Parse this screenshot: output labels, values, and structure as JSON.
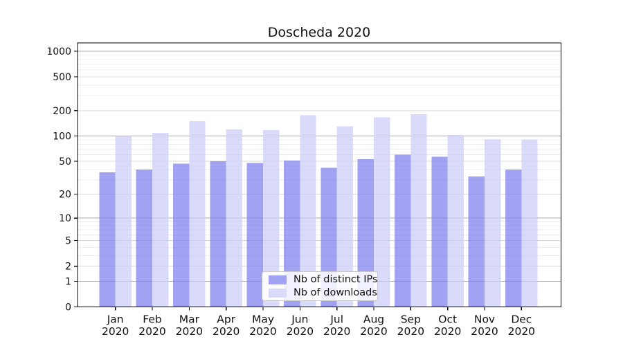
{
  "title": "Doscheda 2020",
  "legend": {
    "items": [
      {
        "label": "Nb of distinct IPs",
        "color": "#a1a3f2"
      },
      {
        "label": "Nb of downloads",
        "color": "#dadbfa"
      }
    ]
  },
  "x_axis": {
    "year": "2020",
    "months": [
      "Jan",
      "Feb",
      "Mar",
      "Apr",
      "May",
      "Jun",
      "Jul",
      "Aug",
      "Sep",
      "Oct",
      "Nov",
      "Dec"
    ]
  },
  "y_axis": {
    "tick_labels": [
      "0",
      "1",
      "2",
      "5",
      "10",
      "20",
      "50",
      "100",
      "200",
      "500",
      "1000"
    ]
  },
  "colors": {
    "bar1_rgba": "rgba(121,124,236,0.7)",
    "bar2_rgba": "rgba(202,204,248,0.7)",
    "grid_major": "#ababab",
    "grid_mid": "#d9d9d9",
    "grid_minor": "#ececec",
    "spine": "#000000"
  },
  "chart_data": {
    "type": "bar",
    "title": "Doscheda 2020",
    "categories": [
      "Jan 2020",
      "Feb 2020",
      "Mar 2020",
      "Apr 2020",
      "May 2020",
      "Jun 2020",
      "Jul 2020",
      "Aug 2020",
      "Sep 2020",
      "Oct 2020",
      "Nov 2020",
      "Dec 2020"
    ],
    "series": [
      {
        "name": "Nb of distinct IPs",
        "values": [
          37,
          40,
          47,
          50,
          48,
          51,
          42,
          53,
          60,
          57,
          33,
          40
        ]
      },
      {
        "name": "Nb of downloads",
        "values": [
          100,
          109,
          150,
          120,
          118,
          176,
          130,
          166,
          181,
          103,
          91,
          90
        ]
      }
    ],
    "y_scale": "symlog-log1p",
    "y_ticks": [
      0,
      1,
      2,
      5,
      10,
      20,
      50,
      100,
      200,
      500,
      1000
    ],
    "ylim": [
      0,
      1250
    ],
    "grid": "both",
    "legend_position": "lower-center-inside",
    "xlabel": "",
    "ylabel": ""
  }
}
